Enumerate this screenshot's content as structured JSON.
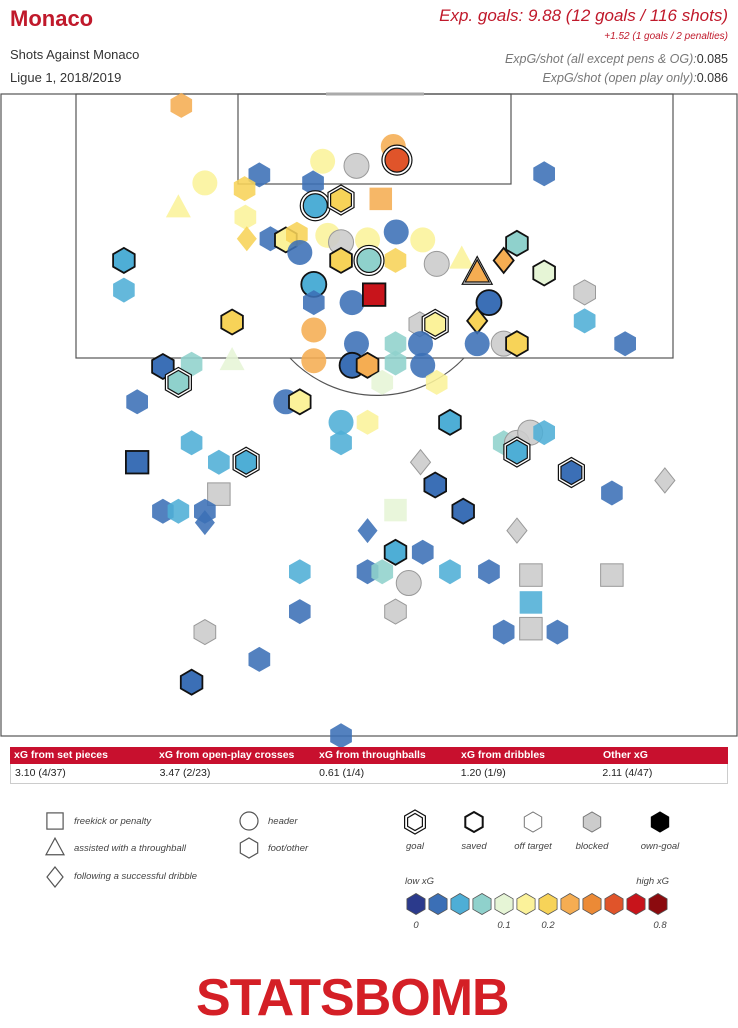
{
  "header": {
    "team": "Monaco",
    "subtitle": "Shots Against Monaco",
    "competition": "Ligue 1, 2018/2019",
    "exp_goals": "Exp. goals: 9.88 (12 goals / 116 shots)",
    "penalties": "+1.52 (1 goals / 2 penalties)",
    "stat1_label": "ExpG/shot (all except pens & OG):",
    "stat1_value": "0.085",
    "stat2_label": "ExpG/shot (open play only):",
    "stat2_value": "0.086"
  },
  "summary": {
    "headers": [
      "xG from set pieces",
      "xG from open-play crosses",
      "xG from throughballs",
      "xG from dribbles",
      "Other xG"
    ],
    "values": [
      "3.10 (4/37)",
      "3.47 (2/23)",
      "0.61 (1/4)",
      "1.20 (1/9)",
      "2.11 (4/47)"
    ]
  },
  "legend": {
    "shape_labels": {
      "square": "freekick or penalty",
      "triangle": "assisted with a throughball",
      "diamond": "following a successful dribble",
      "circle": "header",
      "hexagon": "foot/other"
    },
    "outcome_labels": [
      "goal",
      "saved",
      "off target",
      "blocked",
      "own-goal"
    ],
    "scale_low": "low xG",
    "scale_high": "high xG",
    "scale_ticks": [
      "0",
      "0.1",
      "0.2",
      "0.8"
    ],
    "scale_colors": [
      "#2b3a8c",
      "#3b6fb6",
      "#4eaed6",
      "#8fd1cc",
      "#e6f5d6",
      "#fbf29a",
      "#f7d358",
      "#f5ad52",
      "#ec8a36",
      "#e0542a",
      "#c8141b",
      "#8b0a0e"
    ]
  },
  "logo_text": "STATSBOMB",
  "chart_data": {
    "type": "scatter",
    "title": "Shots Against Monaco",
    "x_axis": "pitch width (0 = left touchline, 100 = right touchline)",
    "y_axis": "distance from goal line (pitch length units, 0 = goal line)",
    "shots": [
      {
        "x": 24.5,
        "y": 1.0,
        "shape": "hexagon",
        "outcome": "off",
        "xg": 0.2
      },
      {
        "x": 43.7,
        "y": 5.9,
        "shape": "circle",
        "outcome": "off",
        "xg": 0.11
      },
      {
        "x": 48.3,
        "y": 6.3,
        "shape": "circle",
        "outcome": "blocked",
        "xg": 0.08
      },
      {
        "x": 42.4,
        "y": 7.8,
        "shape": "hexagon",
        "outcome": "off",
        "xg": 0.02
      },
      {
        "x": 51.6,
        "y": 9.2,
        "shape": "square",
        "outcome": "off",
        "xg": 0.3
      },
      {
        "x": 53.3,
        "y": 4.6,
        "shape": "circle",
        "outcome": "off",
        "xg": 0.32
      },
      {
        "x": 53.8,
        "y": 5.8,
        "shape": "circle",
        "outcome": "goal",
        "xg": 0.55
      },
      {
        "x": 35.1,
        "y": 7.1,
        "shape": "hexagon",
        "outcome": "off",
        "xg": 0.03
      },
      {
        "x": 27.7,
        "y": 7.8,
        "shape": "circle",
        "outcome": "off",
        "xg": 0.1
      },
      {
        "x": 33.1,
        "y": 8.3,
        "shape": "hexagon",
        "outcome": "off",
        "xg": 0.18
      },
      {
        "x": 42.7,
        "y": 9.8,
        "shape": "circle",
        "outcome": "goal",
        "xg": 0.05
      },
      {
        "x": 46.2,
        "y": 9.3,
        "shape": "hexagon",
        "outcome": "goal",
        "xg": 0.16
      },
      {
        "x": 24.1,
        "y": 10.0,
        "shape": "triangle",
        "outcome": "off",
        "xg": 0.12
      },
      {
        "x": 33.2,
        "y": 10.8,
        "shape": "hexagon",
        "outcome": "off",
        "xg": 0.12
      },
      {
        "x": 73.8,
        "y": 7.0,
        "shape": "hexagon",
        "outcome": "off",
        "xg": 0.03
      },
      {
        "x": 33.4,
        "y": 12.7,
        "shape": "diamond",
        "outcome": "off",
        "xg": 0.18
      },
      {
        "x": 36.6,
        "y": 12.7,
        "shape": "hexagon",
        "outcome": "off",
        "xg": 0.03
      },
      {
        "x": 38.7,
        "y": 12.8,
        "shape": "hexagon",
        "outcome": "saved",
        "xg": 0.15
      },
      {
        "x": 40.2,
        "y": 12.3,
        "shape": "hexagon",
        "outcome": "off",
        "xg": 0.17
      },
      {
        "x": 44.4,
        "y": 12.4,
        "shape": "circle",
        "outcome": "off",
        "xg": 0.11
      },
      {
        "x": 46.2,
        "y": 13.0,
        "shape": "circle",
        "outcome": "blocked",
        "xg": 0.08
      },
      {
        "x": 49.8,
        "y": 12.8,
        "shape": "circle",
        "outcome": "off",
        "xg": 0.14
      },
      {
        "x": 53.7,
        "y": 12.1,
        "shape": "circle",
        "outcome": "off",
        "xg": 0.03
      },
      {
        "x": 57.3,
        "y": 12.8,
        "shape": "circle",
        "outcome": "off",
        "xg": 0.1
      },
      {
        "x": 40.6,
        "y": 13.9,
        "shape": "circle",
        "outcome": "off",
        "xg": 0.03
      },
      {
        "x": 46.2,
        "y": 14.6,
        "shape": "hexagon",
        "outcome": "saved",
        "xg": 0.17
      },
      {
        "x": 50.0,
        "y": 14.6,
        "shape": "circle",
        "outcome": "goal",
        "xg": 0.06
      },
      {
        "x": 53.6,
        "y": 14.6,
        "shape": "hexagon",
        "outcome": "off",
        "xg": 0.17
      },
      {
        "x": 16.7,
        "y": 14.6,
        "shape": "hexagon",
        "outcome": "saved",
        "xg": 0.05
      },
      {
        "x": 16.7,
        "y": 17.2,
        "shape": "hexagon",
        "outcome": "off",
        "xg": 0.04
      },
      {
        "x": 59.2,
        "y": 14.9,
        "shape": "circle",
        "outcome": "blocked",
        "xg": 0.08
      },
      {
        "x": 62.6,
        "y": 14.5,
        "shape": "triangle",
        "outcome": "off",
        "xg": 0.12
      },
      {
        "x": 64.7,
        "y": 15.7,
        "shape": "triangle",
        "outcome": "goal",
        "xg": 0.2
      },
      {
        "x": 68.3,
        "y": 14.6,
        "shape": "diamond",
        "outcome": "saved",
        "xg": 0.22
      },
      {
        "x": 70.1,
        "y": 13.1,
        "shape": "hexagon",
        "outcome": "saved",
        "xg": 0.06
      },
      {
        "x": 73.8,
        "y": 15.7,
        "shape": "hexagon",
        "outcome": "saved",
        "xg": 0.09
      },
      {
        "x": 79.3,
        "y": 17.4,
        "shape": "hexagon",
        "outcome": "blocked",
        "xg": 0.08
      },
      {
        "x": 42.5,
        "y": 16.7,
        "shape": "circle",
        "outcome": "saved",
        "xg": 0.05
      },
      {
        "x": 42.5,
        "y": 18.3,
        "shape": "hexagon",
        "outcome": "off",
        "xg": 0.02
      },
      {
        "x": 47.7,
        "y": 18.3,
        "shape": "circle",
        "outcome": "off",
        "xg": 0.03
      },
      {
        "x": 50.7,
        "y": 17.6,
        "shape": "square",
        "outcome": "saved",
        "xg": 0.72
      },
      {
        "x": 66.3,
        "y": 18.3,
        "shape": "circle",
        "outcome": "saved",
        "xg": 0.02
      },
      {
        "x": 31.4,
        "y": 20.0,
        "shape": "hexagon",
        "outcome": "saved",
        "xg": 0.18
      },
      {
        "x": 42.5,
        "y": 20.7,
        "shape": "circle",
        "outcome": "off",
        "xg": 0.24
      },
      {
        "x": 56.9,
        "y": 20.2,
        "shape": "hexagon",
        "outcome": "blocked",
        "xg": 0.17
      },
      {
        "x": 59.0,
        "y": 20.2,
        "shape": "hexagon",
        "outcome": "goal",
        "xg": 0.1
      },
      {
        "x": 64.7,
        "y": 19.9,
        "shape": "diamond",
        "outcome": "saved",
        "xg": 0.18
      },
      {
        "x": 48.3,
        "y": 21.9,
        "shape": "circle",
        "outcome": "off",
        "xg": 0.02
      },
      {
        "x": 53.6,
        "y": 21.9,
        "shape": "hexagon",
        "outcome": "off",
        "xg": 0.07
      },
      {
        "x": 57.0,
        "y": 21.9,
        "shape": "circle",
        "outcome": "off",
        "xg": 0.02
      },
      {
        "x": 64.7,
        "y": 21.9,
        "shape": "circle",
        "outcome": "off",
        "xg": 0.03
      },
      {
        "x": 68.3,
        "y": 21.9,
        "shape": "circle",
        "outcome": "blocked",
        "xg": 0.08
      },
      {
        "x": 70.1,
        "y": 21.9,
        "shape": "hexagon",
        "outcome": "saved",
        "xg": 0.16
      },
      {
        "x": 79.3,
        "y": 19.9,
        "shape": "hexagon",
        "outcome": "off",
        "xg": 0.04
      },
      {
        "x": 84.8,
        "y": 21.9,
        "shape": "hexagon",
        "outcome": "off",
        "xg": 0.03
      },
      {
        "x": 31.4,
        "y": 23.4,
        "shape": "triangle",
        "outcome": "off",
        "xg": 0.08
      },
      {
        "x": 22.0,
        "y": 23.9,
        "shape": "hexagon",
        "outcome": "saved",
        "xg": 0.03
      },
      {
        "x": 25.9,
        "y": 23.7,
        "shape": "hexagon",
        "outcome": "off",
        "xg": 0.06
      },
      {
        "x": 24.1,
        "y": 25.3,
        "shape": "hexagon",
        "outcome": "goal",
        "xg": 0.07
      },
      {
        "x": 42.5,
        "y": 23.4,
        "shape": "circle",
        "outcome": "off",
        "xg": 0.27
      },
      {
        "x": 47.7,
        "y": 23.8,
        "shape": "circle",
        "outcome": "saved",
        "xg": 0.02
      },
      {
        "x": 49.8,
        "y": 23.8,
        "shape": "hexagon",
        "outcome": "saved",
        "xg": 0.27
      },
      {
        "x": 51.8,
        "y": 25.3,
        "shape": "hexagon",
        "outcome": "off",
        "xg": 0.09
      },
      {
        "x": 53.6,
        "y": 23.6,
        "shape": "hexagon",
        "outcome": "off",
        "xg": 0.07
      },
      {
        "x": 57.3,
        "y": 23.8,
        "shape": "circle",
        "outcome": "off",
        "xg": 0.02
      },
      {
        "x": 59.2,
        "y": 25.3,
        "shape": "hexagon",
        "outcome": "off",
        "xg": 0.11
      },
      {
        "x": 18.5,
        "y": 27.0,
        "shape": "hexagon",
        "outcome": "off",
        "xg": 0.03
      },
      {
        "x": 38.7,
        "y": 27.0,
        "shape": "circle",
        "outcome": "off",
        "xg": 0.03
      },
      {
        "x": 40.6,
        "y": 27.0,
        "shape": "hexagon",
        "outcome": "saved",
        "xg": 0.11
      },
      {
        "x": 49.8,
        "y": 28.8,
        "shape": "hexagon",
        "outcome": "off",
        "xg": 0.15
      },
      {
        "x": 61.0,
        "y": 28.8,
        "shape": "hexagon",
        "outcome": "saved",
        "xg": 0.04
      },
      {
        "x": 46.2,
        "y": 28.8,
        "shape": "circle",
        "outcome": "off",
        "xg": 0.04
      },
      {
        "x": 25.9,
        "y": 30.6,
        "shape": "hexagon",
        "outcome": "off",
        "xg": 0.04
      },
      {
        "x": 46.2,
        "y": 30.6,
        "shape": "hexagon",
        "outcome": "off",
        "xg": 0.04
      },
      {
        "x": 68.3,
        "y": 30.6,
        "shape": "hexagon",
        "outcome": "off",
        "xg": 0.06
      },
      {
        "x": 70.1,
        "y": 30.6,
        "shape": "circle",
        "outcome": "blocked",
        "xg": 0.06
      },
      {
        "x": 71.9,
        "y": 29.7,
        "shape": "circle",
        "outcome": "blocked",
        "xg": 0.08
      },
      {
        "x": 73.8,
        "y": 29.7,
        "shape": "hexagon",
        "outcome": "off",
        "xg": 0.05
      },
      {
        "x": 18.5,
        "y": 32.3,
        "shape": "square",
        "outcome": "saved",
        "xg": 0.03
      },
      {
        "x": 29.6,
        "y": 32.3,
        "shape": "hexagon",
        "outcome": "off",
        "xg": 0.04
      },
      {
        "x": 33.3,
        "y": 32.3,
        "shape": "hexagon",
        "outcome": "goal",
        "xg": 0.04
      },
      {
        "x": 57.0,
        "y": 32.3,
        "shape": "diamond",
        "outcome": "blocked",
        "xg": 0.08
      },
      {
        "x": 70.1,
        "y": 31.4,
        "shape": "hexagon",
        "outcome": "goal",
        "xg": 0.05
      },
      {
        "x": 77.5,
        "y": 33.2,
        "shape": "hexagon",
        "outcome": "goal",
        "xg": 0.02
      },
      {
        "x": 90.2,
        "y": 33.9,
        "shape": "diamond",
        "outcome": "blocked",
        "xg": 0.08
      },
      {
        "x": 29.6,
        "y": 35.1,
        "shape": "square",
        "outcome": "blocked",
        "xg": 0.08
      },
      {
        "x": 59.0,
        "y": 34.3,
        "shape": "hexagon",
        "outcome": "saved",
        "xg": 0.03
      },
      {
        "x": 83.0,
        "y": 35.0,
        "shape": "hexagon",
        "outcome": "off",
        "xg": 0.03
      },
      {
        "x": 22.0,
        "y": 36.6,
        "shape": "hexagon",
        "outcome": "off",
        "xg": 0.03
      },
      {
        "x": 24.1,
        "y": 36.6,
        "shape": "hexagon",
        "outcome": "off",
        "xg": 0.04
      },
      {
        "x": 27.7,
        "y": 36.6,
        "shape": "hexagon",
        "outcome": "off",
        "xg": 0.03
      },
      {
        "x": 53.6,
        "y": 36.5,
        "shape": "square",
        "outcome": "off",
        "xg": 0.09
      },
      {
        "x": 62.8,
        "y": 36.6,
        "shape": "hexagon",
        "outcome": "saved",
        "xg": 0.02
      },
      {
        "x": 27.7,
        "y": 37.6,
        "shape": "diamond",
        "outcome": "off",
        "xg": 0.02
      },
      {
        "x": 49.8,
        "y": 38.3,
        "shape": "diamond",
        "outcome": "off",
        "xg": 0.02
      },
      {
        "x": 70.1,
        "y": 38.3,
        "shape": "diamond",
        "outcome": "blocked",
        "xg": 0.08
      },
      {
        "x": 53.6,
        "y": 40.2,
        "shape": "hexagon",
        "outcome": "saved",
        "xg": 0.04
      },
      {
        "x": 57.3,
        "y": 40.2,
        "shape": "hexagon",
        "outcome": "off",
        "xg": 0.03
      },
      {
        "x": 40.6,
        "y": 41.9,
        "shape": "hexagon",
        "outcome": "off",
        "xg": 0.05
      },
      {
        "x": 49.8,
        "y": 41.9,
        "shape": "hexagon",
        "outcome": "off",
        "xg": 0.02
      },
      {
        "x": 51.8,
        "y": 41.9,
        "shape": "hexagon",
        "outcome": "off",
        "xg": 0.07
      },
      {
        "x": 61.0,
        "y": 41.9,
        "shape": "hexagon",
        "outcome": "off",
        "xg": 0.05
      },
      {
        "x": 66.3,
        "y": 41.9,
        "shape": "hexagon",
        "outcome": "off",
        "xg": 0.02
      },
      {
        "x": 72.0,
        "y": 42.2,
        "shape": "square",
        "outcome": "blocked",
        "xg": 0.08
      },
      {
        "x": 83.0,
        "y": 42.2,
        "shape": "square",
        "outcome": "blocked",
        "xg": 0.08
      },
      {
        "x": 55.4,
        "y": 42.9,
        "shape": "circle",
        "outcome": "blocked",
        "xg": 0.08
      },
      {
        "x": 40.6,
        "y": 45.4,
        "shape": "hexagon",
        "outcome": "off",
        "xg": 0.03
      },
      {
        "x": 53.6,
        "y": 45.4,
        "shape": "hexagon",
        "outcome": "blocked",
        "xg": 0.08
      },
      {
        "x": 68.3,
        "y": 47.2,
        "shape": "hexagon",
        "outcome": "off",
        "xg": 0.03
      },
      {
        "x": 72.0,
        "y": 44.6,
        "shape": "square",
        "outcome": "off",
        "xg": 0.05
      },
      {
        "x": 72.0,
        "y": 46.9,
        "shape": "square",
        "outcome": "blocked",
        "xg": 0.08
      },
      {
        "x": 75.6,
        "y": 47.2,
        "shape": "hexagon",
        "outcome": "off",
        "xg": 0.02
      },
      {
        "x": 27.7,
        "y": 47.2,
        "shape": "hexagon",
        "outcome": "blocked",
        "xg": 0.08
      },
      {
        "x": 35.1,
        "y": 49.6,
        "shape": "hexagon",
        "outcome": "off",
        "xg": 0.02
      },
      {
        "x": 25.9,
        "y": 51.6,
        "shape": "hexagon",
        "outcome": "saved",
        "xg": 0.02
      },
      {
        "x": 46.2,
        "y": 56.3,
        "shape": "hexagon",
        "outcome": "off",
        "xg": 0.03
      }
    ]
  }
}
